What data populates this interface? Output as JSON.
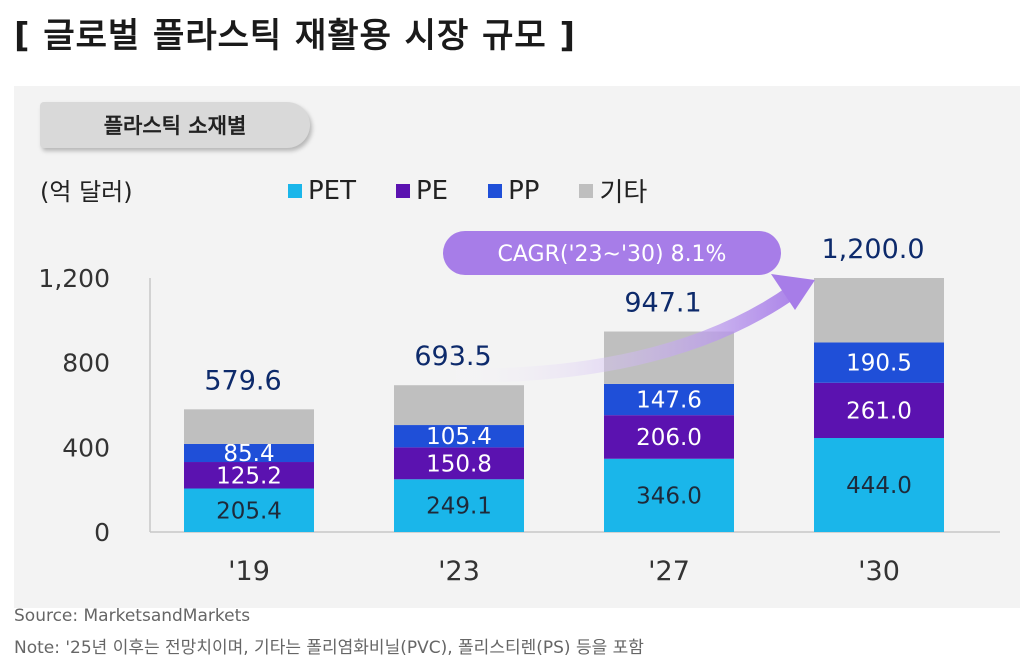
{
  "title": "[ 글로벌 플라스틱 재활용 시장 규모 ]",
  "subtitle": "플라스틱 소재별",
  "unit": "(억 달러)",
  "source": "Source: MarketsandMarkets",
  "note": "Note: '25년 이후는 전망치이며, 기타는 폴리염화비닐(PVC), 폴리스티렌(PS) 등을 포함",
  "cagr_label": "CAGR('23~'30) 8.1%",
  "colors": {
    "PET": "#1ab6ea",
    "PE": "#5b12b0",
    "PP": "#1f4fd8",
    "기타": "#bfbfbf",
    "total_label": "#0d2a6b",
    "cagr": "#a77de8"
  },
  "chart_data": {
    "type": "bar",
    "stacked": true,
    "categories": [
      "'19",
      "'23",
      "'27",
      "'30"
    ],
    "series": [
      {
        "name": "PET",
        "values": [
          205.4,
          249.1,
          346.0,
          444.0
        ]
      },
      {
        "name": "PE",
        "values": [
          125.2,
          150.8,
          206.0,
          261.0
        ]
      },
      {
        "name": "PP",
        "values": [
          85.4,
          105.4,
          147.6,
          190.5
        ]
      },
      {
        "name": "기타",
        "values": [
          163.6,
          188.2,
          247.5,
          304.5
        ]
      }
    ],
    "totals": [
      579.6,
      693.5,
      947.1,
      1200.0
    ],
    "total_labels": [
      "579.6",
      "693.5",
      "947.1",
      "1,200.0"
    ],
    "segment_labels": {
      "PET": [
        "205.4",
        "249.1",
        "346.0",
        "444.0"
      ],
      "PE": [
        "125.2",
        "150.8",
        "206.0",
        "261.0"
      ],
      "PP": [
        "85.4",
        "105.4",
        "147.6",
        "190.5"
      ]
    },
    "yticks": [
      0,
      400,
      800,
      1200
    ],
    "ytick_labels": [
      "0",
      "400",
      "800",
      "1,200"
    ],
    "ylim": [
      0,
      1200
    ],
    "legend": [
      "PET",
      "PE",
      "PP",
      "기타"
    ],
    "legend_position": "top"
  }
}
